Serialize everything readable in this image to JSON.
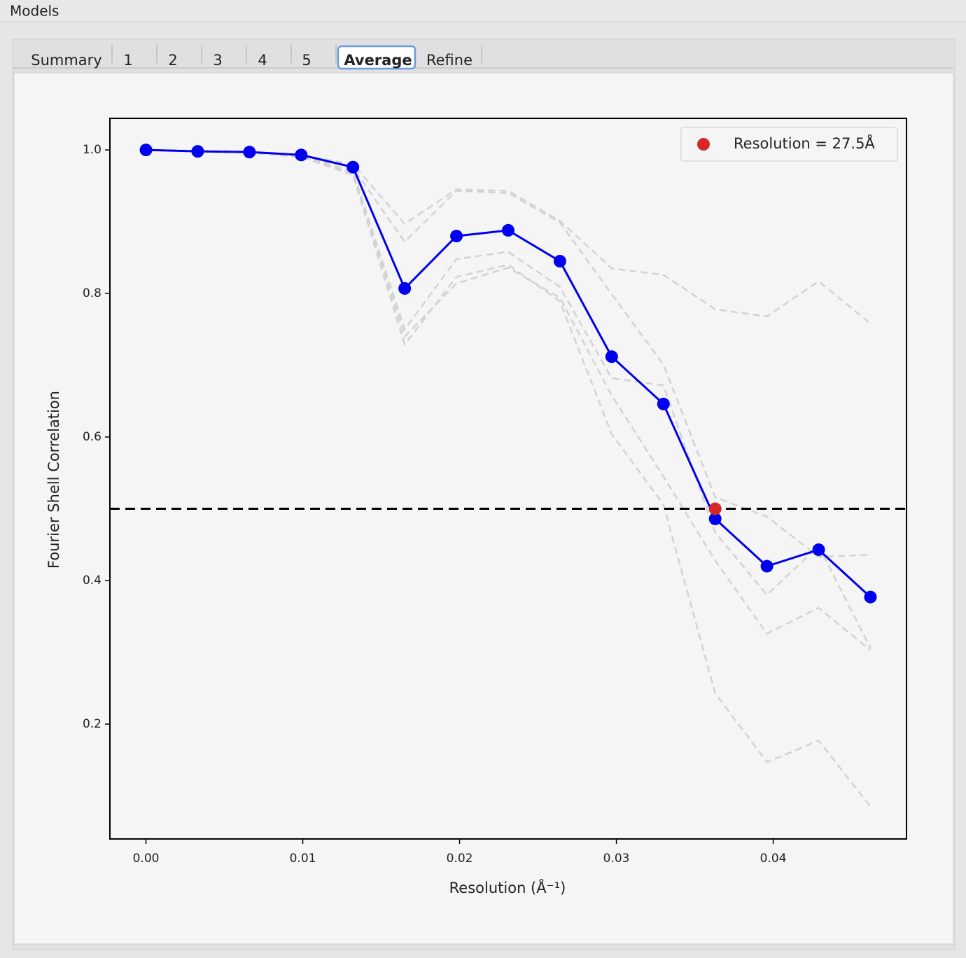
{
  "window_title": "Models",
  "tabs": [
    "Summary",
    "1",
    "2",
    "3",
    "4",
    "5",
    "Average",
    "Refine"
  ],
  "selected_tab": 6,
  "chart_data": {
    "type": "line",
    "x_label": "Resolution (Å⁻¹)",
    "y_label": "Fourier Shell Correlation",
    "x": [
      0,
      0.0033,
      0.0066,
      0.0099,
      0.0132,
      0.0165,
      0.0198,
      0.0231,
      0.0264,
      0.0297,
      0.033,
      0.0363,
      0.0396,
      0.0429,
      0.0462
    ],
    "series": [
      {
        "color": "#d3d3d3",
        "dashed": true,
        "values": [
          1.0,
          0.999,
          0.998,
          0.993,
          0.98,
          0.897,
          0.945,
          0.943,
          0.901,
          0.835,
          0.826,
          0.778,
          0.768,
          0.817,
          0.758
        ]
      },
      {
        "color": "#d3d3d3",
        "dashed": true,
        "values": [
          1.0,
          0.998,
          0.996,
          0.99,
          0.965,
          0.729,
          0.823,
          0.84,
          0.789,
          0.604,
          0.506,
          0.243,
          0.147,
          0.177,
          0.085
        ]
      },
      {
        "color": "#d3d3d3",
        "dashed": true,
        "values": [
          1.0,
          0.999,
          0.997,
          0.992,
          0.975,
          0.872,
          0.943,
          0.94,
          0.899,
          0.799,
          0.701,
          0.516,
          0.489,
          0.433,
          0.436
        ]
      },
      {
        "color": "#d3d3d3",
        "dashed": true,
        "values": [
          1.0,
          0.998,
          0.997,
          0.991,
          0.97,
          0.75,
          0.848,
          0.858,
          0.809,
          0.682,
          0.672,
          0.467,
          0.38,
          0.448,
          0.306
        ]
      },
      {
        "color": "#d3d3d3",
        "dashed": true,
        "values": [
          1.0,
          0.998,
          0.996,
          0.99,
          0.968,
          0.74,
          0.814,
          0.836,
          0.794,
          0.658,
          0.545,
          0.428,
          0.326,
          0.362,
          0.303
        ]
      },
      {
        "color": "#0000ee",
        "markers": true,
        "values": [
          1.0,
          0.998,
          0.997,
          0.993,
          0.976,
          0.807,
          0.88,
          0.888,
          0.845,
          0.712,
          0.646,
          0.486,
          0.42,
          0.443,
          0.377
        ]
      }
    ],
    "threshold": 0.5,
    "resolution_point": {
      "x": 0.0363,
      "y": 0.5,
      "color": "#d62728",
      "label": "Resolution = 27.5Å"
    },
    "legend": "upper right",
    "xlim": [
      -0.0023,
      0.0485
    ],
    "ylim": [
      0.04,
      1.044
    ],
    "xticks": [
      {
        "value": 0,
        "label": "0.00"
      },
      0.01,
      0.02,
      0.03,
      0.04
    ],
    "yticks": [
      0.2,
      0.4,
      0.6,
      0.8,
      {
        "value": 1,
        "label": "1.0"
      }
    ]
  }
}
